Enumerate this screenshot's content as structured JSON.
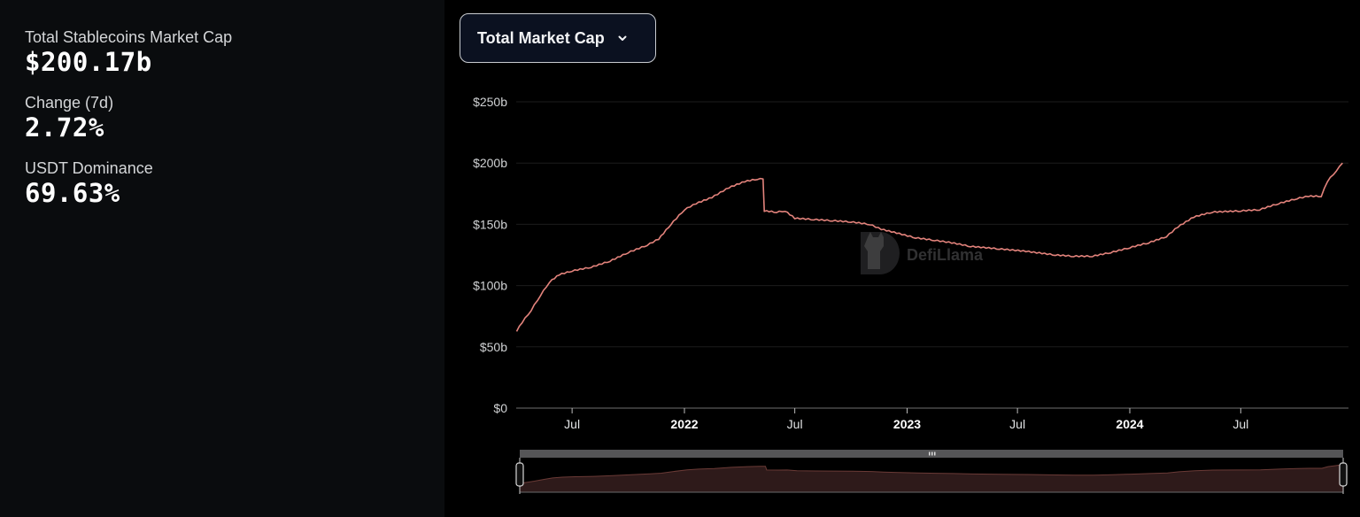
{
  "stats": [
    {
      "label": "Total Stablecoins Market Cap",
      "value": "$200.17b"
    },
    {
      "label": "Change (7d)",
      "value": "2.72%"
    },
    {
      "label": "USDT Dominance",
      "value": "69.63%"
    }
  ],
  "dropdown": {
    "label": "Total Market Cap",
    "icon": "chevron-down-icon"
  },
  "watermark": {
    "text": "DefiLlama",
    "icon": "llama-logo-icon"
  },
  "colors": {
    "line": "#e3837c",
    "area": "#2e1a1a",
    "grid": "#1c1c1c",
    "left_panel_bg": "#0a0c0e",
    "chart_bg": "#000000",
    "dropdown_bg": "#0b1120"
  },
  "chart_data": {
    "type": "line",
    "title": "Total Market Cap",
    "xlabel": "",
    "ylabel": "",
    "ylim": [
      0,
      250
    ],
    "y_unit": "$b",
    "y_ticks": [
      "$0",
      "$50b",
      "$100b",
      "$150b",
      "$200b",
      "$250b"
    ],
    "x_ticks": [
      {
        "label": "Jul",
        "year_label": false,
        "date": "2021-07"
      },
      {
        "label": "2022",
        "year_label": true,
        "date": "2022-01"
      },
      {
        "label": "Jul",
        "year_label": false,
        "date": "2022-07"
      },
      {
        "label": "2023",
        "year_label": true,
        "date": "2023-01"
      },
      {
        "label": "Jul",
        "year_label": false,
        "date": "2023-07"
      },
      {
        "label": "2024",
        "year_label": true,
        "date": "2024-01"
      },
      {
        "label": "Jul",
        "year_label": false,
        "date": "2024-07"
      }
    ],
    "grid": true,
    "legend": null,
    "series": [
      {
        "name": "Total Stablecoins Market Cap",
        "points": [
          [
            "2021-04-01",
            63
          ],
          [
            "2021-04-10",
            70
          ],
          [
            "2021-04-25",
            80
          ],
          [
            "2021-05-10",
            92
          ],
          [
            "2021-05-25",
            103
          ],
          [
            "2021-06-10",
            109
          ],
          [
            "2021-07-01",
            112
          ],
          [
            "2021-08-01",
            115
          ],
          [
            "2021-09-01",
            120
          ],
          [
            "2021-10-01",
            127
          ],
          [
            "2021-11-01",
            133
          ],
          [
            "2021-11-20",
            138
          ],
          [
            "2021-12-10",
            150
          ],
          [
            "2022-01-01",
            162
          ],
          [
            "2022-01-20",
            167
          ],
          [
            "2022-02-15",
            172
          ],
          [
            "2022-03-15",
            180
          ],
          [
            "2022-04-10",
            185
          ],
          [
            "2022-05-01",
            187
          ],
          [
            "2022-05-10",
            187
          ],
          [
            "2022-05-12",
            161
          ],
          [
            "2022-06-01",
            160
          ],
          [
            "2022-06-15",
            161
          ],
          [
            "2022-07-01",
            155
          ],
          [
            "2022-08-01",
            154
          ],
          [
            "2022-09-01",
            153
          ],
          [
            "2022-10-01",
            152
          ],
          [
            "2022-11-01",
            150
          ],
          [
            "2022-11-20",
            146
          ],
          [
            "2022-12-15",
            143
          ],
          [
            "2023-01-15",
            139
          ],
          [
            "2023-02-15",
            137
          ],
          [
            "2023-03-15",
            135
          ],
          [
            "2023-04-15",
            132
          ],
          [
            "2023-06-01",
            130
          ],
          [
            "2023-07-15",
            128
          ],
          [
            "2023-09-01",
            125
          ],
          [
            "2023-10-01",
            124
          ],
          [
            "2023-11-01",
            124
          ],
          [
            "2023-12-01",
            127
          ],
          [
            "2024-01-01",
            131
          ],
          [
            "2024-02-01",
            135
          ],
          [
            "2024-03-01",
            140
          ],
          [
            "2024-03-20",
            148
          ],
          [
            "2024-04-15",
            156
          ],
          [
            "2024-05-15",
            160
          ],
          [
            "2024-07-01",
            161
          ],
          [
            "2024-08-01",
            162
          ],
          [
            "2024-09-01",
            167
          ],
          [
            "2024-10-01",
            171
          ],
          [
            "2024-10-20",
            173
          ],
          [
            "2024-11-10",
            173
          ],
          [
            "2024-11-20",
            185
          ],
          [
            "2024-12-05",
            194
          ],
          [
            "2024-12-15",
            200
          ]
        ]
      }
    ],
    "current_value": "$200.17b"
  },
  "navigator": {
    "left_handle": "range-start-handle",
    "right_handle": "range-end-handle",
    "grip": "drag-grip-icon"
  }
}
